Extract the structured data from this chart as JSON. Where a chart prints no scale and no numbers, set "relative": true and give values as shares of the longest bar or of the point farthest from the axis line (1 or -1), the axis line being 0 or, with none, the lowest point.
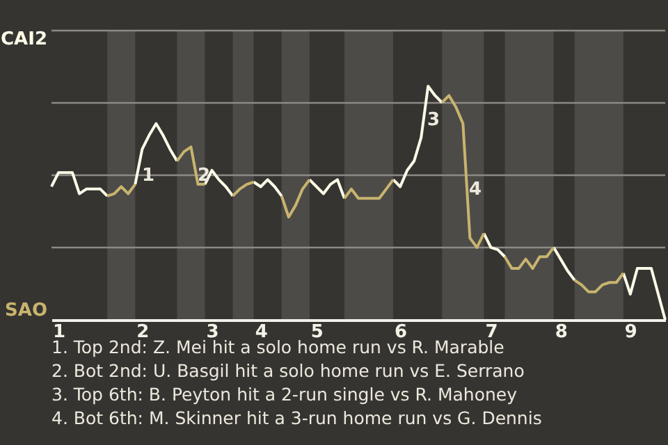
{
  "chart_data": {
    "type": "line",
    "relative": true,
    "categories": [
      null,
      "1",
      null,
      null,
      null,
      null,
      null,
      null,
      null,
      null,
      null,
      null,
      null,
      "2",
      null,
      null,
      null,
      null,
      null,
      null,
      null,
      null,
      null,
      "3",
      null,
      null,
      null,
      null,
      null,
      null,
      "4",
      null,
      null,
      null,
      null,
      null,
      null,
      null,
      "5",
      null,
      null,
      null,
      null,
      null,
      null,
      null,
      null,
      null,
      null,
      null,
      "6",
      null,
      null,
      null,
      null,
      null,
      null,
      null,
      null,
      null,
      null,
      null,
      null,
      "7",
      null,
      null,
      null,
      null,
      null,
      null,
      null,
      null,
      null,
      "8",
      null,
      null,
      null,
      null,
      null,
      null,
      null,
      null,
      null,
      "9",
      null,
      null,
      null,
      null,
      null
    ],
    "series": [
      {
        "name": "CAI2",
        "color": "#fffbe8",
        "values": [
          0.57,
          0.63,
          0.63,
          0.63,
          0.54,
          0.56,
          0.56,
          0.56,
          0.53,
          null,
          null,
          null,
          0.58,
          0.73,
          0.79,
          0.84,
          0.79,
          0.73,
          0.68,
          null,
          null,
          null,
          0.58,
          0.64,
          0.6,
          0.57,
          0.53,
          null,
          null,
          0.59,
          0.57,
          0.6,
          0.57,
          0.53,
          null,
          null,
          null,
          0.6,
          0.57,
          0.54,
          0.58,
          0.6,
          0.52,
          null,
          null,
          null,
          null,
          null,
          null,
          0.6,
          0.57,
          0.64,
          0.68,
          0.78,
          1,
          0.96,
          0.93,
          null,
          null,
          null,
          null,
          null,
          0.37,
          0.31,
          0.3,
          0.27,
          null,
          null,
          null,
          null,
          null,
          null,
          0.31,
          0.26,
          0.21,
          0.17,
          null,
          null,
          null,
          null,
          null,
          null,
          0.2,
          0.11,
          0.22,
          0.22,
          0.22,
          0.11,
          0
        ]
      },
      {
        "name": "SAO",
        "color": "#c8b46e",
        "values": [
          null,
          null,
          null,
          null,
          null,
          null,
          null,
          null,
          0.53,
          0.54,
          0.57,
          0.54,
          0.58,
          null,
          null,
          null,
          null,
          null,
          0.68,
          0.72,
          0.74,
          0.58,
          0.58,
          null,
          null,
          null,
          0.53,
          0.56,
          0.58,
          0.59,
          null,
          null,
          null,
          0.53,
          0.44,
          0.49,
          0.56,
          0.6,
          null,
          null,
          null,
          null,
          0.52,
          0.56,
          0.52,
          0.52,
          0.52,
          0.52,
          0.56,
          0.6,
          null,
          null,
          null,
          null,
          null,
          null,
          0.93,
          0.96,
          0.91,
          0.84,
          0.35,
          0.31,
          0.37,
          null,
          null,
          0.27,
          0.22,
          0.22,
          0.26,
          0.22,
          0.27,
          0.27,
          0.31,
          null,
          null,
          0.17,
          0.15,
          0.12,
          0.12,
          0.15,
          0.16,
          0.16,
          0.2,
          null,
          null,
          null,
          null,
          null,
          null
        ]
      }
    ],
    "grid": true,
    "annotations": [
      "1",
      "2",
      "3",
      "4",
      "1. Top 2nd: Z. Mei hit a solo home run vs R. Marable",
      "2. Bot 2nd: U. Basgil hit a solo home run vs E. Serrano",
      "3. Top 6th: B. Peyton hit a 2-run single vs R. Mahoney",
      "4. Bot 6th: M. Skinner hit a 3-run home run vs G. Dennis"
    ],
    "marker": "none",
    "line_style": "solid"
  }
}
